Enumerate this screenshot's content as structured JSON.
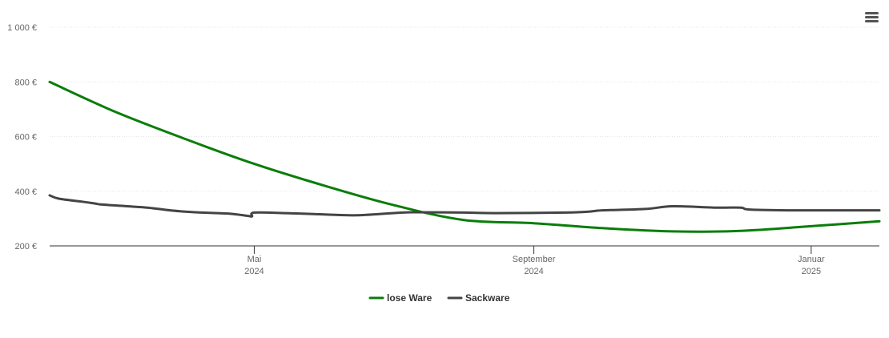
{
  "chart_data": {
    "type": "line",
    "title": "",
    "xlabel": "",
    "ylabel": "",
    "ylim": [
      200,
      1000
    ],
    "y_ticks": [
      {
        "value": 200,
        "label": "200 €"
      },
      {
        "value": 400,
        "label": "400 €"
      },
      {
        "value": 600,
        "label": "600 €"
      },
      {
        "value": 800,
        "label": "800 €"
      },
      {
        "value": 1000,
        "label": "1 000 €"
      }
    ],
    "xlim": [
      "2024-02-01",
      "2025-01-31"
    ],
    "x_ticks": [
      {
        "date": "2024-05-01",
        "label": "Mai",
        "year": "2024"
      },
      {
        "date": "2024-09-01",
        "label": "September",
        "year": "2024"
      },
      {
        "date": "2025-01-01",
        "label": "Januar",
        "year": "2025"
      }
    ],
    "grid": true,
    "legend_position": "bottom",
    "series": [
      {
        "name": "lose Ware",
        "color": "#0a7d0a",
        "points": [
          [
            "2024-02-01",
            800
          ],
          [
            "2024-03-01",
            690
          ],
          [
            "2024-04-01",
            590
          ],
          [
            "2024-05-01",
            500
          ],
          [
            "2024-06-01",
            420
          ],
          [
            "2024-07-01",
            350
          ],
          [
            "2024-08-01",
            295
          ],
          [
            "2024-09-01",
            283
          ],
          [
            "2024-10-01",
            265
          ],
          [
            "2024-11-01",
            253
          ],
          [
            "2024-12-01",
            255
          ],
          [
            "2025-01-01",
            272
          ],
          [
            "2025-01-31",
            290
          ]
        ]
      },
      {
        "name": "Sackware",
        "color": "#444444",
        "points": [
          [
            "2024-02-01",
            385
          ],
          [
            "2024-02-05",
            373
          ],
          [
            "2024-02-15",
            362
          ],
          [
            "2024-02-21",
            355
          ],
          [
            "2024-02-23",
            352
          ],
          [
            "2024-03-01",
            348
          ],
          [
            "2024-03-15",
            340
          ],
          [
            "2024-03-25",
            330
          ],
          [
            "2024-04-05",
            323
          ],
          [
            "2024-04-20",
            318
          ],
          [
            "2024-04-28",
            310
          ],
          [
            "2024-04-30",
            308
          ],
          [
            "2024-05-01",
            322
          ],
          [
            "2024-05-15",
            320
          ],
          [
            "2024-06-01",
            315
          ],
          [
            "2024-06-15",
            312
          ],
          [
            "2024-07-01",
            320
          ],
          [
            "2024-07-10",
            323
          ],
          [
            "2024-08-01",
            322
          ],
          [
            "2024-08-15",
            320
          ],
          [
            "2024-09-15",
            322
          ],
          [
            "2024-09-25",
            325
          ],
          [
            "2024-10-01",
            330
          ],
          [
            "2024-10-20",
            335
          ],
          [
            "2024-11-01",
            345
          ],
          [
            "2024-11-20",
            340
          ],
          [
            "2024-12-01",
            340
          ],
          [
            "2024-12-05",
            333
          ],
          [
            "2024-12-25",
            330
          ],
          [
            "2025-01-31",
            330
          ]
        ]
      }
    ]
  }
}
